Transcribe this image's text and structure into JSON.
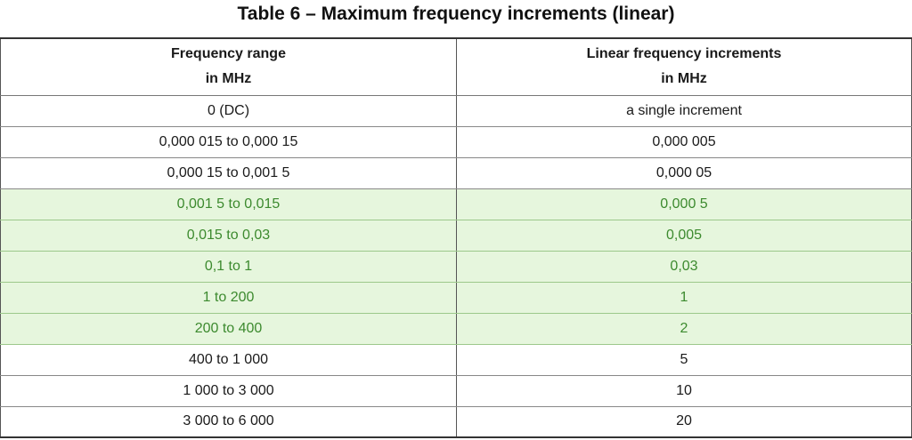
{
  "title": "Table 6 – Maximum frequency increments (linear)",
  "columns": [
    {
      "line1": "Frequency range",
      "line2": "in MHz"
    },
    {
      "line1": "Linear frequency increments",
      "line2": "in MHz"
    }
  ],
  "rows": [
    {
      "range": "0 (DC)",
      "increment": "a single increment",
      "highlighted": false
    },
    {
      "range": "0,000 015 to 0,000 15",
      "increment": "0,000 005",
      "highlighted": false
    },
    {
      "range": "0,000 15 to 0,001 5",
      "increment": "0,000 05",
      "highlighted": false
    },
    {
      "range": "0,001 5 to 0,015",
      "increment": "0,000 5",
      "highlighted": true
    },
    {
      "range": "0,015 to 0,03",
      "increment": "0,005",
      "highlighted": true
    },
    {
      "range": "0,1 to 1",
      "increment": "0,03",
      "highlighted": true
    },
    {
      "range": "1 to 200",
      "increment": "1",
      "highlighted": true
    },
    {
      "range": "200 to 400",
      "increment": "2",
      "highlighted": true
    },
    {
      "range": "400 to 1 000",
      "increment": "5",
      "highlighted": false
    },
    {
      "range": "1 000 to 3 000",
      "increment": "10",
      "highlighted": false
    },
    {
      "range": "3 000 to 6 000",
      "increment": "20",
      "highlighted": false
    }
  ],
  "colors": {
    "highlight_background": "#e6f6dd",
    "highlight_text": "#3c8a2e"
  }
}
